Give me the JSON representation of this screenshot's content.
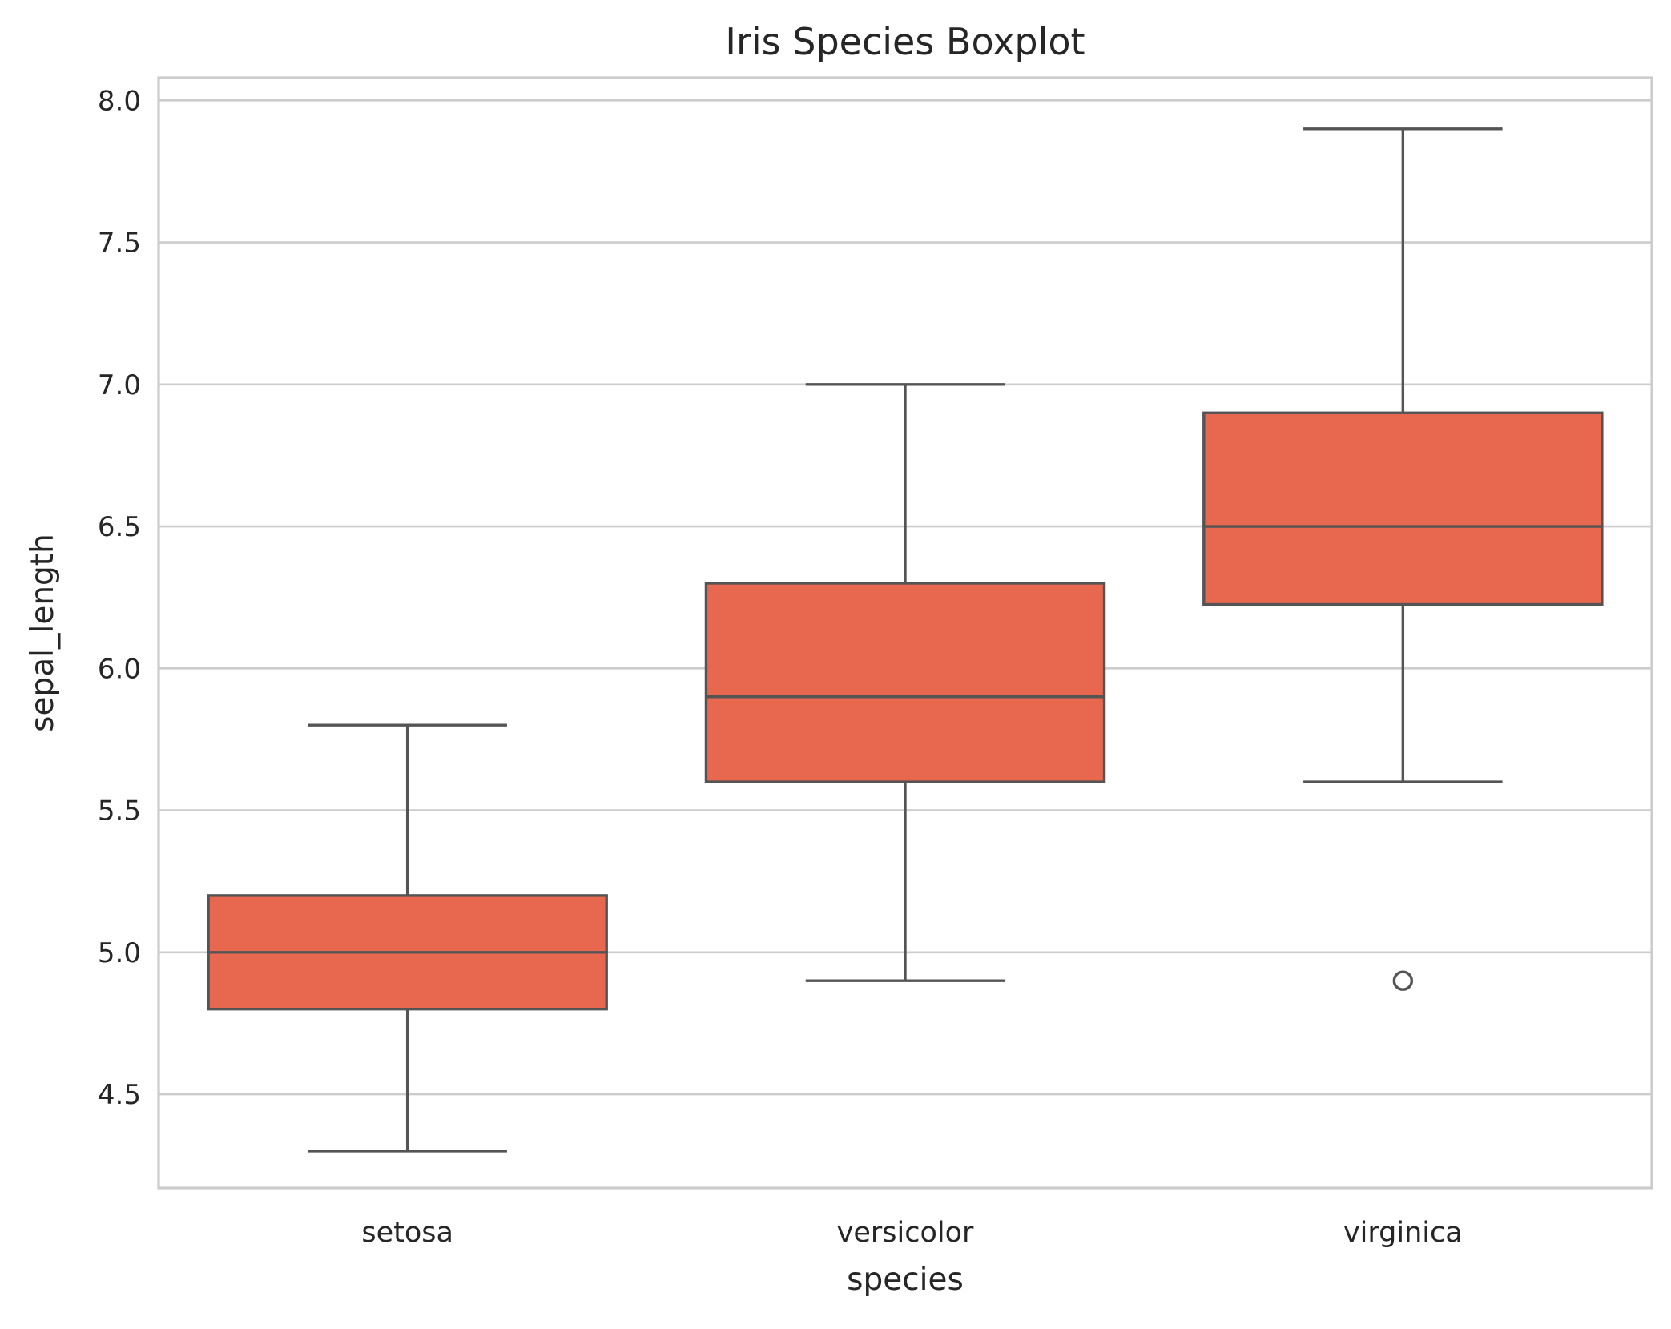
{
  "chart_data": {
    "type": "box",
    "title": "Iris Species Boxplot",
    "xlabel": "species",
    "ylabel": "sepal_length",
    "ylim": [
      4.17,
      8.08
    ],
    "yticks": [
      "4.5",
      "5.0",
      "5.5",
      "6.0",
      "6.5",
      "7.0",
      "7.5",
      "8.0"
    ],
    "grid": true,
    "categories": [
      "setosa",
      "versicolor",
      "virginica"
    ],
    "boxes": [
      {
        "category": "setosa",
        "whisker_low": 4.3,
        "q1": 4.8,
        "median": 5.0,
        "q3": 5.2,
        "whisker_high": 5.8,
        "outliers": []
      },
      {
        "category": "versicolor",
        "whisker_low": 4.9,
        "q1": 5.6,
        "median": 5.9,
        "q3": 6.3,
        "whisker_high": 7.0,
        "outliers": []
      },
      {
        "category": "virginica",
        "whisker_low": 5.6,
        "q1": 6.225,
        "median": 6.5,
        "q3": 6.9,
        "whisker_high": 7.9,
        "outliers": [
          4.9
        ]
      }
    ],
    "colors": {
      "box_fill": "#e8684f",
      "line": "#545454",
      "grid": "#cccccc",
      "spine": "#cccccc",
      "text": "#262626"
    }
  }
}
